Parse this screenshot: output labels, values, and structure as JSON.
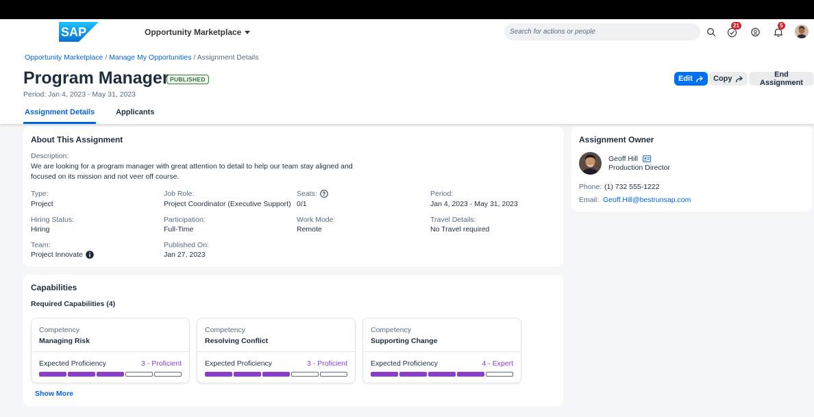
{
  "shell": {
    "app_title": "Opportunity Marketplace",
    "search_placeholder": "Search for actions or people",
    "tasks_badge": "21",
    "notifications_badge": "5",
    "logo_text": "SAP"
  },
  "breadcrumb": {
    "items": [
      "Opportunity Marketplace",
      "Manage My Opportunities"
    ],
    "current": "Assignment Details",
    "separator": "/"
  },
  "header": {
    "title": "Program Manager",
    "status": "PUBLISHED",
    "period": "Period: Jan 4, 2023 - May 31, 2023",
    "actions": {
      "edit": "Edit",
      "copy": "Copy",
      "end": "End Assignment"
    }
  },
  "tabs": [
    {
      "label": "Assignment Details",
      "active": true
    },
    {
      "label": "Applicants",
      "active": false
    }
  ],
  "about": {
    "title": "About This Assignment",
    "description_label": "Description:",
    "description": "We are looking for a program manager with great attention to detail to help our team stay aligned and focused on its mission and not veer off course.",
    "fields": [
      {
        "label": "Type:",
        "value": "Project"
      },
      {
        "label": "Job Role:",
        "value": "Project Coordinator (Executive Support)"
      },
      {
        "label": "Seats:",
        "value": "0/1"
      },
      {
        "label": "Period:",
        "value": "Jan 4, 2023 - May 31, 2023"
      },
      {
        "label": "Hiring Status:",
        "value": "Hiring"
      },
      {
        "label": "Participation:",
        "value": "Full-Time"
      },
      {
        "label": "Work Mode:",
        "value": "Remote"
      },
      {
        "label": "Travel Details:",
        "value": "No Travel required"
      },
      {
        "label": "Team:",
        "value": "Project Innovate"
      },
      {
        "label": "Published On:",
        "value": "Jan 27, 2023"
      }
    ]
  },
  "capabilities": {
    "title": "Capabilities",
    "subtitle": "Required Capabilities (4)",
    "items": [
      {
        "category": "Competency",
        "name": "Managing Risk",
        "expected_label": "Expected Proficiency",
        "level_text": "3 - Proficient",
        "level": 3,
        "max": 5
      },
      {
        "category": "Competency",
        "name": "Resolving Conflict",
        "expected_label": "Expected Proficiency",
        "level_text": "3 - Proficient",
        "level": 3,
        "max": 5
      },
      {
        "category": "Competency",
        "name": "Supporting Change",
        "expected_label": "Expected Proficiency",
        "level_text": "4 - Expert",
        "level": 4,
        "max": 5
      }
    ],
    "show_more": "Show More"
  },
  "owner": {
    "title": "Assignment Owner",
    "name": "Geoff Hill",
    "role": "Production Director",
    "phone_label": "Phone:",
    "phone": "(1) 732 555-1222",
    "email_label": "Email:",
    "email": "Geoff.Hill@bestrunsap.com"
  },
  "colors": {
    "brand_blue": "#0070f2",
    "link_blue": "#0064d9",
    "proficiency_purple": "#8b3dcc",
    "status_green": "#256f3a",
    "badge_red": "#d2212c"
  }
}
